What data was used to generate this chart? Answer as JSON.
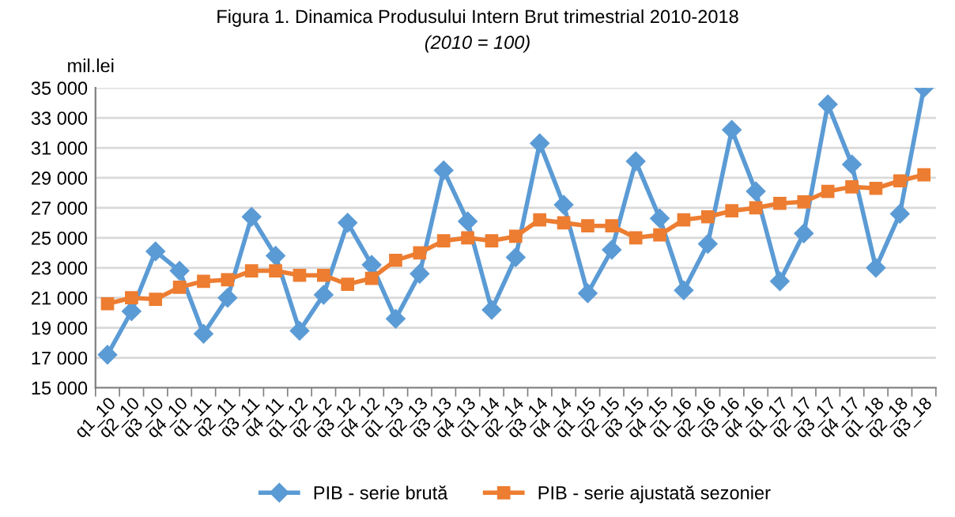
{
  "chart_data": {
    "type": "line",
    "title": "Figura 1. Dinamica Produsului Intern Brut trimestrial 2010-2018",
    "subtitle": "(2010 = 100)",
    "ylabel": "mil.lei",
    "categories": [
      "q1_10",
      "q2_10",
      "q3_10",
      "q4_10",
      "q1_11",
      "q2_11",
      "q3_11",
      "q4_11",
      "q1_12",
      "q2_12",
      "q3_12",
      "q4_12",
      "q1_13",
      "q2_13",
      "q3_13",
      "q4_13",
      "q1_14",
      "q2_14",
      "q3_14",
      "q4_14",
      "q1_15",
      "q2_15",
      "q3_15",
      "q4_15",
      "q1_16",
      "q2_16",
      "q3_16",
      "q4_16",
      "q1_17",
      "q2_17",
      "q3_17",
      "q4_17",
      "q1_18",
      "q2_18",
      "q3_18"
    ],
    "series": [
      {
        "name": "PIB - serie brută",
        "color": "#5b9bd5",
        "marker": "diamond",
        "values": [
          17200,
          20100,
          24100,
          22800,
          18600,
          21000,
          26400,
          23800,
          18800,
          21200,
          26000,
          23200,
          19600,
          22600,
          29500,
          26100,
          20200,
          23700,
          31300,
          27200,
          21300,
          24200,
          30100,
          26300,
          21500,
          24600,
          32200,
          28100,
          22100,
          25300,
          33900,
          29900,
          23000,
          26600,
          35000
        ]
      },
      {
        "name": "PIB - serie ajustată sezonier",
        "color": "#ed7d31",
        "marker": "square",
        "values": [
          20600,
          21000,
          20900,
          21700,
          22100,
          22200,
          22800,
          22800,
          22500,
          22500,
          21900,
          22300,
          23500,
          24000,
          24800,
          25000,
          24800,
          25100,
          26200,
          26000,
          25800,
          25800,
          25000,
          25200,
          26200,
          26400,
          26800,
          27000,
          27300,
          27400,
          28100,
          28400,
          28300,
          28800,
          29200
        ]
      }
    ],
    "ylim": [
      15000,
      35000
    ],
    "yticks": [
      {
        "value": 15000,
        "label": "15 000"
      },
      {
        "value": 17000,
        "label": "17 000"
      },
      {
        "value": 19000,
        "label": "19 000"
      },
      {
        "value": 21000,
        "label": "21 000"
      },
      {
        "value": 23000,
        "label": "23 000"
      },
      {
        "value": 25000,
        "label": "25 000"
      },
      {
        "value": 27000,
        "label": "27 000"
      },
      {
        "value": 29000,
        "label": "29 000"
      },
      {
        "value": 31000,
        "label": "31 000"
      },
      {
        "value": 33000,
        "label": "33 000"
      },
      {
        "value": 35000,
        "label": "35 000"
      }
    ],
    "grid": "y",
    "legend": "bottom",
    "line_style": "solid"
  }
}
